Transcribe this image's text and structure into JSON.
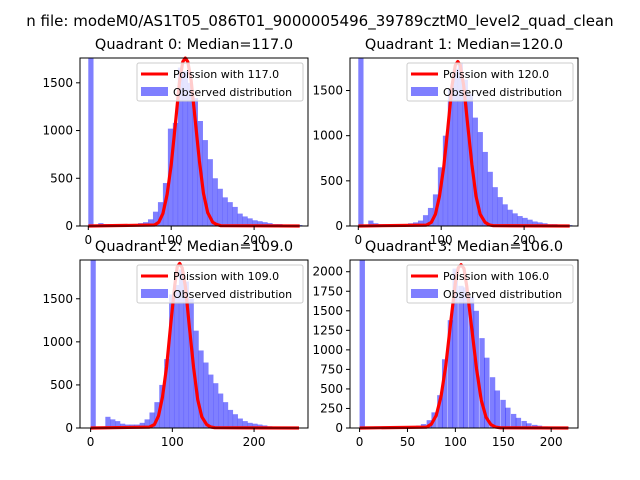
{
  "figure": {
    "suptitle": "n file: modeM0/AS1T05_086T01_9000005496_39789cztM0_level2_quad_clean"
  },
  "chart_data": [
    {
      "type": "bar",
      "title": "Quadrant 0: Median=117.0",
      "legend_placement": "top-right",
      "xlim": [
        -10,
        265
      ],
      "ylim": [
        0,
        1760
      ],
      "xticks": [
        0,
        100,
        200
      ],
      "yticks": [
        0,
        500,
        1000,
        1500
      ],
      "legend": {
        "line": "Poission with 117.0",
        "hist": "Observed distribution"
      },
      "colors": {
        "line": "#ff0000",
        "hist": "#0000ff"
      },
      "bin_width": 6.3,
      "hist": {
        "x": [
          0,
          12,
          18,
          24,
          30,
          36,
          42,
          48,
          54,
          60,
          66,
          72,
          78,
          84,
          90,
          96,
          102,
          108,
          114,
          120,
          126,
          132,
          138,
          144,
          150,
          156,
          162,
          168,
          174,
          180,
          186,
          192,
          198,
          204,
          210,
          216,
          222,
          228,
          234,
          240,
          246,
          252
        ],
        "values": [
          1760,
          30,
          20,
          20,
          20,
          20,
          20,
          20,
          20,
          30,
          40,
          70,
          150,
          250,
          450,
          1020,
          1080,
          1660,
          1620,
          1500,
          1340,
          1100,
          900,
          700,
          500,
          390,
          300,
          250,
          200,
          130,
          100,
          80,
          60,
          50,
          40,
          30,
          20,
          20,
          15,
          10,
          10,
          10
        ]
      },
      "poisson": {
        "x": [
          0,
          80,
          85,
          90,
          95,
          100,
          105,
          110,
          114,
          117,
          120,
          124,
          129,
          134,
          139,
          144,
          150,
          155,
          160,
          255
        ],
        "values": [
          0,
          10,
          40,
          130,
          330,
          640,
          1060,
          1510,
          1720,
          1760,
          1720,
          1530,
          1110,
          680,
          340,
          140,
          40,
          15,
          3,
          0
        ]
      }
    },
    {
      "type": "bar",
      "title": "Quadrant 1: Median=120.0",
      "legend_placement": "top-right",
      "xlim": [
        -10,
        265
      ],
      "ylim": [
        0,
        1860
      ],
      "xticks": [
        0,
        100,
        200
      ],
      "yticks": [
        0,
        500,
        1000,
        1500
      ],
      "legend": {
        "line": "Poission with 120.0",
        "hist": "Observed distribution"
      },
      "colors": {
        "line": "#ff0000",
        "hist": "#0000ff"
      },
      "bin_width": 6.3,
      "hist": {
        "x": [
          0,
          12,
          18,
          24,
          30,
          36,
          42,
          48,
          54,
          60,
          66,
          72,
          78,
          84,
          90,
          96,
          102,
          108,
          114,
          120,
          126,
          132,
          138,
          144,
          150,
          156,
          162,
          168,
          174,
          180,
          186,
          192,
          198,
          204,
          210,
          216,
          222,
          228,
          234,
          240,
          246,
          252
        ],
        "values": [
          1860,
          60,
          30,
          20,
          20,
          20,
          20,
          20,
          20,
          30,
          40,
          60,
          120,
          200,
          350,
          650,
          1000,
          1520,
          1740,
          1800,
          1620,
          1460,
          1200,
          1040,
          820,
          600,
          430,
          320,
          240,
          180,
          140,
          110,
          90,
          70,
          50,
          40,
          30,
          20,
          20,
          15,
          10,
          10
        ]
      },
      "poisson": {
        "x": [
          0,
          82,
          88,
          93,
          98,
          103,
          108,
          113,
          117,
          120,
          123,
          127,
          132,
          137,
          142,
          147,
          153,
          158,
          163,
          255
        ],
        "values": [
          0,
          10,
          40,
          130,
          330,
          650,
          1080,
          1550,
          1780,
          1820,
          1780,
          1560,
          1120,
          680,
          330,
          130,
          40,
          12,
          3,
          0
        ]
      }
    },
    {
      "type": "bar",
      "title": "Quadrant 2: Median=109.0",
      "legend_placement": "top-right",
      "xlim": [
        -13,
        266
      ],
      "ylim": [
        0,
        1950
      ],
      "xticks": [
        0,
        100,
        200
      ],
      "yticks": [
        0,
        500,
        1000,
        1500
      ],
      "legend": {
        "line": "Poission with 109.0",
        "hist": "Observed distribution"
      },
      "colors": {
        "line": "#ff0000",
        "hist": "#0000ff"
      },
      "bin_width": 6.3,
      "hist": {
        "x": [
          0,
          18,
          24,
          30,
          36,
          42,
          48,
          54,
          60,
          66,
          72,
          78,
          84,
          90,
          96,
          102,
          108,
          114,
          120,
          126,
          132,
          138,
          144,
          150,
          156,
          162,
          168,
          174,
          180,
          186,
          192,
          198,
          204,
          210,
          216,
          222,
          228,
          234,
          240,
          246,
          252
        ],
        "values": [
          1950,
          130,
          100,
          80,
          50,
          40,
          40,
          40,
          60,
          100,
          180,
          300,
          500,
          800,
          1550,
          1660,
          1840,
          1700,
          1500,
          1130,
          900,
          760,
          620,
          520,
          400,
          300,
          210,
          160,
          110,
          80,
          60,
          50,
          40,
          30,
          20,
          15,
          10,
          10,
          10,
          5,
          5
        ]
      },
      "poisson": {
        "x": [
          0,
          72,
          78,
          83,
          88,
          93,
          98,
          103,
          106,
          109,
          112,
          116,
          121,
          126,
          131,
          136,
          142,
          147,
          152,
          255
        ],
        "values": [
          0,
          10,
          40,
          140,
          360,
          710,
          1200,
          1660,
          1870,
          1910,
          1860,
          1640,
          1160,
          700,
          330,
          130,
          40,
          12,
          3,
          0
        ]
      }
    },
    {
      "type": "bar",
      "title": "Quadrant 3: Median=106.0",
      "legend_placement": "top-right",
      "xlim": [
        -10,
        228
      ],
      "ylim": [
        0,
        2150
      ],
      "xticks": [
        0,
        50,
        100,
        150,
        200
      ],
      "yticks": [
        0,
        250,
        500,
        750,
        1000,
        1250,
        1500,
        1750,
        2000
      ],
      "legend": {
        "line": "Poission with 106.0",
        "hist": "Observed distribution"
      },
      "colors": {
        "line": "#ff0000",
        "hist": "#0000ff"
      },
      "bin_width": 5.6,
      "hist": {
        "x": [
          0,
          15,
          20,
          26,
          31,
          37,
          42,
          48,
          53,
          59,
          64,
          70,
          75,
          81,
          86,
          92,
          97,
          103,
          108,
          114,
          119,
          125,
          130,
          136,
          141,
          147,
          152,
          158,
          163,
          169,
          174,
          180,
          185,
          191,
          196,
          202,
          207,
          213
        ],
        "values": [
          2150,
          20,
          20,
          20,
          20,
          20,
          20,
          20,
          20,
          30,
          50,
          100,
          200,
          420,
          880,
          1380,
          2040,
          1820,
          1800,
          1680,
          1500,
          1150,
          900,
          650,
          480,
          360,
          260,
          180,
          130,
          90,
          60,
          40,
          30,
          20,
          15,
          10,
          10,
          10
        ]
      },
      "poisson": {
        "x": [
          0,
          70,
          75,
          80,
          85,
          90,
          95,
          100,
          103,
          106,
          109,
          112,
          117,
          122,
          127,
          132,
          137,
          142,
          147,
          218
        ],
        "values": [
          0,
          12,
          50,
          160,
          400,
          800,
          1340,
          1860,
          2050,
          2090,
          2040,
          1800,
          1280,
          760,
          360,
          140,
          45,
          12,
          3,
          0
        ]
      }
    }
  ]
}
